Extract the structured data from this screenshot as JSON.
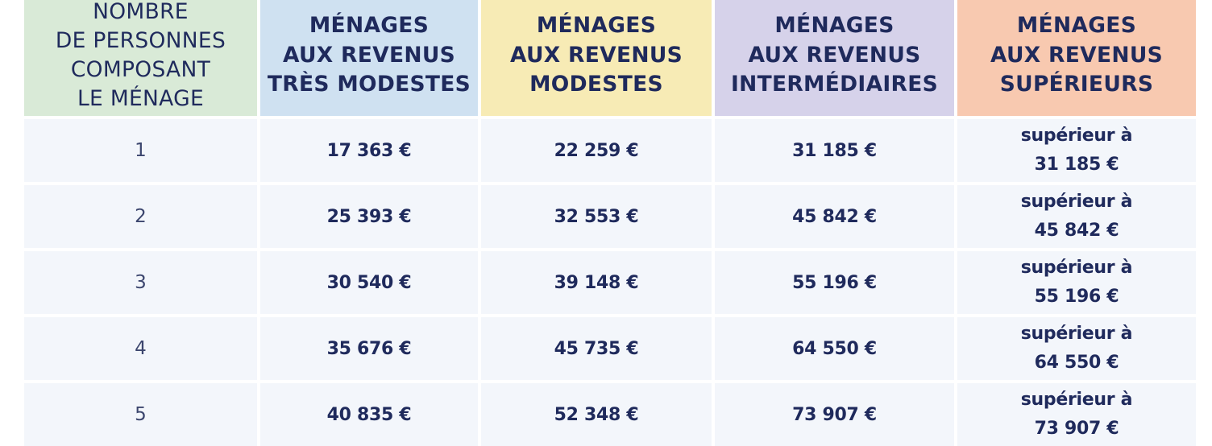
{
  "colors": {
    "header_persons": "#d9ead7",
    "header_tres_modestes": "#cfe1f1",
    "header_modestes": "#f7ebb5",
    "header_intermediaires": "#d6d2ea",
    "header_superieurs": "#f8c9b0",
    "row_bg": "#f3f6fb",
    "text": "#1f2a5c"
  },
  "table": {
    "headers": [
      "NOMBRE\nDE PERSONNES\nCOMPOSANT\nLE MÉNAGE",
      "MÉNAGES\nAUX REVENUS\nTRÈS MODESTES",
      "MÉNAGES\nAUX REVENUS\nMODESTES",
      "MÉNAGES\nAUX REVENUS\nINTERMÉDIAIRES",
      "MÉNAGES\nAUX REVENUS\nSUPÉRIEURS"
    ],
    "superior_prefix": "supérieur à",
    "rows": [
      {
        "persons": "1",
        "tres_modestes": "17 363 €",
        "modestes": "22 259 €",
        "intermediaires": "31 185 €",
        "superieurs": "31 185 €"
      },
      {
        "persons": "2",
        "tres_modestes": "25 393 €",
        "modestes": "32 553 €",
        "intermediaires": "45 842 €",
        "superieurs": "45 842 €"
      },
      {
        "persons": "3",
        "tres_modestes": "30 540 €",
        "modestes": "39 148 €",
        "intermediaires": "55 196 €",
        "superieurs": "55 196 €"
      },
      {
        "persons": "4",
        "tres_modestes": "35 676 €",
        "modestes": "45 735 €",
        "intermediaires": "64 550 €",
        "superieurs": "64 550 €"
      },
      {
        "persons": "5",
        "tres_modestes": "40 835 €",
        "modestes": "52 348 €",
        "intermediaires": "73 907 €",
        "superieurs": "73 907 €"
      }
    ]
  }
}
